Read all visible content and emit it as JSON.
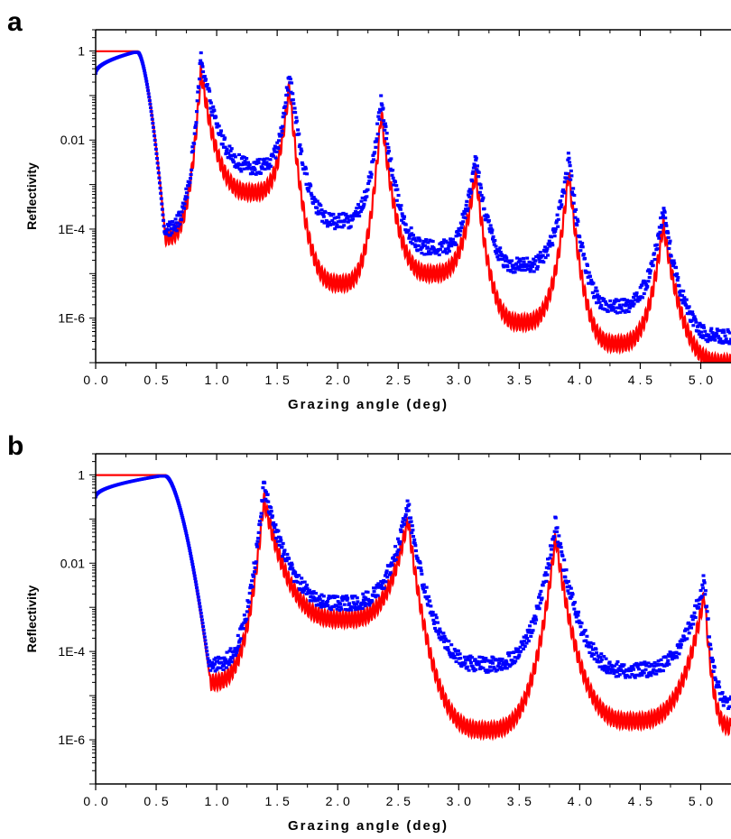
{
  "chart_data": [
    {
      "panel_label": "a",
      "type": "line",
      "xlabel": "Grazing angle (deg)",
      "ylabel": "Reflectivity",
      "yscale": "log",
      "xlim": [
        0.0,
        5.25
      ],
      "ylim": [
        1e-07,
        3
      ],
      "x_ticks": [
        "0.0",
        "0.5",
        "1.0",
        "1.5",
        "2.0",
        "2.5",
        "3.0",
        "3.5",
        "4.0",
        "4.5",
        "5.0"
      ],
      "y_ticks": [
        "1",
        "0.01",
        "1E-4",
        "1E-6"
      ],
      "y_tick_values": [
        1,
        0.01,
        0.0001,
        1e-06
      ],
      "critical_angle": 0.35,
      "dip_angle": 0.57,
      "peaks": [
        {
          "x": 0.87,
          "y": 0.55
        },
        {
          "x": 1.6,
          "y": 0.25
        },
        {
          "x": 2.36,
          "y": 0.065
        },
        {
          "x": 3.14,
          "y": 0.003
        },
        {
          "x": 3.91,
          "y": 0.003
        },
        {
          "x": 4.69,
          "y": 0.0002
        }
      ],
      "series": [
        {
          "role": "fit",
          "color": "#ff0000",
          "style": "line",
          "minima": [
            {
              "x": 0.57,
              "y": 0.0001
            },
            {
              "x": 1.3,
              "y": 0.001
            },
            {
              "x": 2.02,
              "y": 9e-06
            },
            {
              "x": 2.78,
              "y": 1.5e-05
            },
            {
              "x": 3.52,
              "y": 1.2e-06
            },
            {
              "x": 4.3,
              "y": 4e-07
            },
            {
              "x": 5.2,
              "y": 1.5e-07
            }
          ]
        },
        {
          "role": "measured",
          "color": "#0000ff",
          "style": "points",
          "minima": [
            {
              "x": 0.57,
              "y": 8e-05
            },
            {
              "x": 1.35,
              "y": 0.002
            },
            {
              "x": 2.02,
              "y": 0.00012
            },
            {
              "x": 2.8,
              "y": 3e-05
            },
            {
              "x": 3.52,
              "y": 1.2e-05
            },
            {
              "x": 4.3,
              "y": 1.5e-06
            },
            {
              "x": 5.2,
              "y": 3e-07
            }
          ]
        }
      ]
    },
    {
      "panel_label": "b",
      "type": "line",
      "xlabel": "Grazing angle (deg)",
      "ylabel": "Reflectivity",
      "yscale": "log",
      "xlim": [
        0.0,
        5.25
      ],
      "ylim": [
        1e-07,
        3
      ],
      "x_ticks": [
        "0.0",
        "0.5",
        "1.0",
        "1.5",
        "2.0",
        "2.5",
        "3.0",
        "3.5",
        "4.0",
        "4.5",
        "5.0"
      ],
      "y_ticks": [
        "1",
        "0.01",
        "1E-4",
        "1E-6"
      ],
      "y_tick_values": [
        1,
        0.01,
        0.0001,
        1e-06
      ],
      "critical_angle": 0.58,
      "dip_angle": 0.94,
      "peaks": [
        {
          "x": 1.39,
          "y": 0.42
        },
        {
          "x": 2.58,
          "y": 0.15
        },
        {
          "x": 3.8,
          "y": 0.06
        },
        {
          "x": 5.03,
          "y": 0.003
        }
      ],
      "series": [
        {
          "role": "fit",
          "color": "#ff0000",
          "style": "line",
          "minima": [
            {
              "x": 0.94,
              "y": 3e-05
            },
            {
              "x": 2.05,
              "y": 0.0008
            },
            {
              "x": 3.22,
              "y": 2.5e-06
            },
            {
              "x": 4.43,
              "y": 4e-06
            },
            {
              "x": 5.25,
              "y": 3e-06
            }
          ]
        },
        {
          "role": "measured",
          "color": "#0000ff",
          "style": "points",
          "minima": [
            {
              "x": 0.94,
              "y": 4e-05
            },
            {
              "x": 2.05,
              "y": 0.001
            },
            {
              "x": 3.22,
              "y": 4e-05
            },
            {
              "x": 4.43,
              "y": 3e-05
            },
            {
              "x": 5.25,
              "y": 6e-06
            }
          ]
        }
      ]
    }
  ]
}
